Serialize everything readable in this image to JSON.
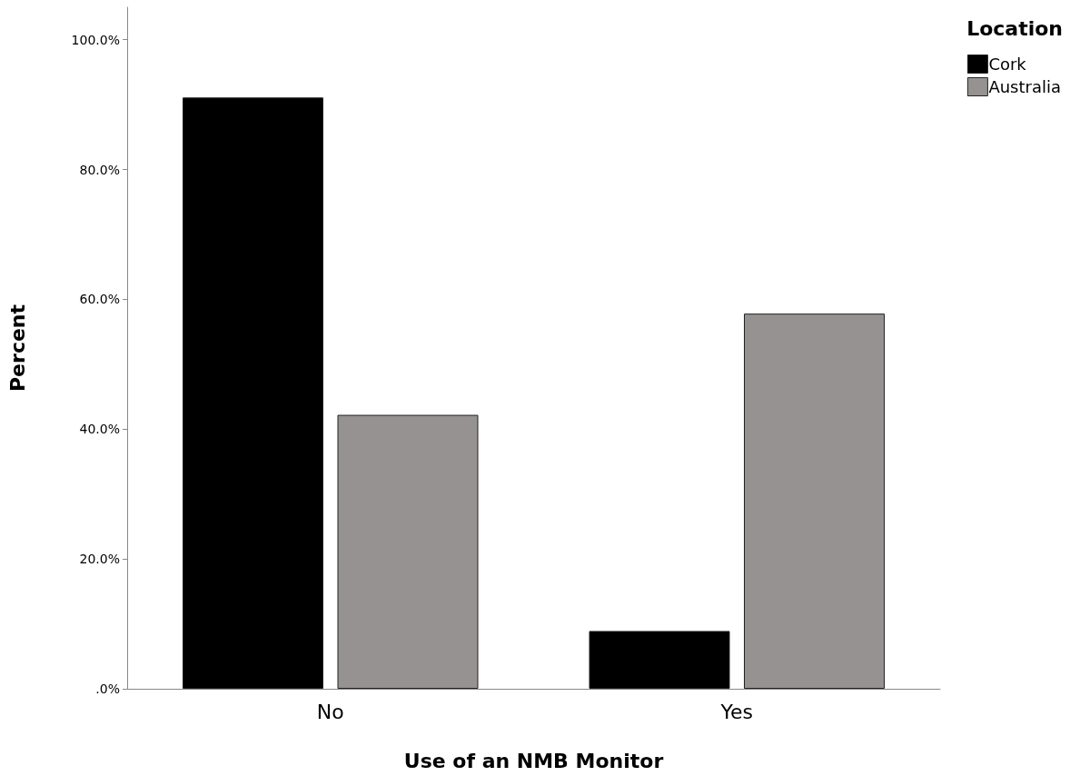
{
  "chart_data": {
    "type": "bar",
    "xlabel": "Use of an NMB Monitor",
    "ylabel": "Percent",
    "legend_title": "Location",
    "categories": [
      "No",
      "Yes"
    ],
    "series": [
      {
        "name": "Cork",
        "color": "#000000",
        "values": [
          91.1,
          8.9
        ]
      },
      {
        "name": "Australia",
        "color": "#969291",
        "values": [
          42.2,
          57.8
        ]
      }
    ],
    "ylim": [
      0,
      105
    ],
    "yticks": [
      {
        "value": 0,
        "label": ".0%"
      },
      {
        "value": 20,
        "label": "20.0%"
      },
      {
        "value": 40,
        "label": "40.0%"
      },
      {
        "value": 60,
        "label": "60.0%"
      },
      {
        "value": 80,
        "label": "80.0%"
      },
      {
        "value": 100,
        "label": "100.0%"
      }
    ],
    "grid": false,
    "legend": "top right"
  }
}
